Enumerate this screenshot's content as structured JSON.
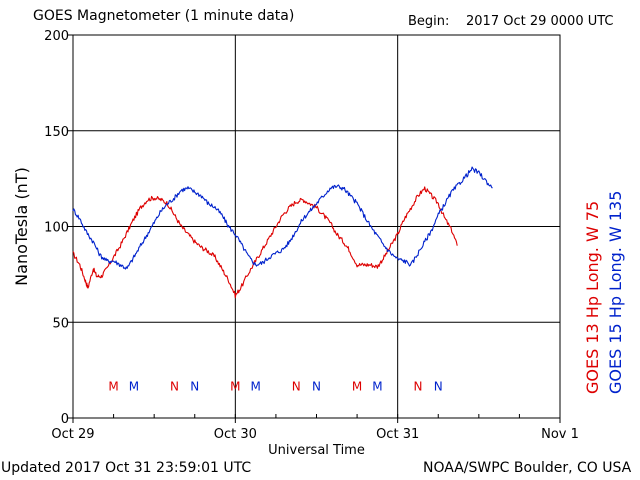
{
  "header": {
    "title": "GOES Magnetometer (1 minute data)",
    "begin_label": "Begin:",
    "begin_value": "2017 Oct 29 0000 UTC"
  },
  "footer": {
    "updated": "Updated 2017 Oct 31 23:59:01 UTC",
    "source": "NOAA/SWPC Boulder, CO USA"
  },
  "colors": {
    "goes13": "#dd0000",
    "goes15": "#0022cc",
    "grid": "#000000"
  },
  "chart_data": {
    "type": "line",
    "title": "GOES Magnetometer (1 minute data)",
    "xlabel": "Universal Time",
    "ylabel": "NanoTesla (nT)",
    "ylim": [
      0,
      200
    ],
    "xlim": [
      0,
      72
    ],
    "x_unit": "hours since 2017 Oct 29 0000 UTC",
    "yticks": [
      0,
      50,
      100,
      150,
      200
    ],
    "xticks": [
      {
        "x": 0,
        "label": "Oct 29"
      },
      {
        "x": 24,
        "label": "Oct 30"
      },
      {
        "x": 48,
        "label": "Oct 31"
      },
      {
        "x": 72,
        "label": "Nov 1"
      }
    ],
    "grid": true,
    "series": [
      {
        "name": "GOES 13 Hp",
        "legend": [
          "GOES 13 Hp",
          "Long. W 75"
        ],
        "color": "#dd0000",
        "points": [
          [
            0,
            86
          ],
          [
            1,
            80
          ],
          [
            1.8,
            72
          ],
          [
            2.2,
            68
          ],
          [
            3,
            78
          ],
          [
            3.5,
            74
          ],
          [
            4.2,
            74
          ],
          [
            5,
            78
          ],
          [
            6,
            84
          ],
          [
            7,
            90
          ],
          [
            8,
            97
          ],
          [
            9,
            104
          ],
          [
            10,
            110
          ],
          [
            11,
            114
          ],
          [
            12,
            115
          ],
          [
            13,
            114
          ],
          [
            14,
            112
          ],
          [
            15,
            106
          ],
          [
            16,
            100
          ],
          [
            17,
            96
          ],
          [
            18,
            92
          ],
          [
            19,
            89
          ],
          [
            20,
            87
          ],
          [
            21,
            84
          ],
          [
            22,
            78
          ],
          [
            23,
            72
          ],
          [
            24,
            64
          ],
          [
            24.8,
            68
          ],
          [
            26,
            76
          ],
          [
            27,
            82
          ],
          [
            28,
            88
          ],
          [
            29,
            94
          ],
          [
            30,
            100
          ],
          [
            31,
            106
          ],
          [
            32,
            110
          ],
          [
            33,
            113
          ],
          [
            34,
            114
          ],
          [
            35,
            112
          ],
          [
            36,
            110
          ],
          [
            37,
            106
          ],
          [
            38,
            102
          ],
          [
            39,
            96
          ],
          [
            40,
            92
          ],
          [
            40.8,
            88
          ],
          [
            42,
            80
          ],
          [
            43,
            80
          ],
          [
            44,
            80
          ],
          [
            45,
            79
          ],
          [
            46,
            84
          ],
          [
            47,
            90
          ],
          [
            48,
            96
          ],
          [
            49,
            104
          ],
          [
            50,
            110
          ],
          [
            51,
            116
          ],
          [
            52,
            120
          ],
          [
            53,
            116
          ],
          [
            54,
            112
          ],
          [
            55,
            104
          ],
          [
            56,
            98
          ],
          [
            56.8,
            90
          ]
        ]
      },
      {
        "name": "GOES 15 Hp",
        "legend": [
          "GOES 15 Hp",
          "Long. W 135"
        ],
        "color": "#0022cc",
        "points": [
          [
            0,
            109
          ],
          [
            1,
            104
          ],
          [
            2,
            97
          ],
          [
            3,
            92
          ],
          [
            4,
            85
          ],
          [
            5,
            82
          ],
          [
            6,
            82
          ],
          [
            7,
            80
          ],
          [
            8,
            78
          ],
          [
            9,
            84
          ],
          [
            10,
            90
          ],
          [
            11,
            96
          ],
          [
            12,
            102
          ],
          [
            13,
            108
          ],
          [
            14,
            112
          ],
          [
            15,
            115
          ],
          [
            16,
            119
          ],
          [
            17,
            120
          ],
          [
            18,
            118
          ],
          [
            19,
            116
          ],
          [
            20,
            112
          ],
          [
            21,
            110
          ],
          [
            22,
            106
          ],
          [
            23,
            100
          ],
          [
            24,
            96
          ],
          [
            25,
            90
          ],
          [
            26,
            84
          ],
          [
            27,
            80
          ],
          [
            28,
            81
          ],
          [
            29,
            84
          ],
          [
            30,
            86
          ],
          [
            31,
            88
          ],
          [
            32,
            92
          ],
          [
            33,
            98
          ],
          [
            34,
            104
          ],
          [
            35,
            108
          ],
          [
            36,
            112
          ],
          [
            37,
            116
          ],
          [
            38,
            120
          ],
          [
            39,
            121
          ],
          [
            40,
            120
          ],
          [
            41,
            116
          ],
          [
            42,
            112
          ],
          [
            43,
            106
          ],
          [
            44,
            100
          ],
          [
            45,
            95
          ],
          [
            46,
            90
          ],
          [
            47,
            86
          ],
          [
            48,
            83
          ],
          [
            49,
            82
          ],
          [
            50,
            80
          ],
          [
            51,
            86
          ],
          [
            52,
            92
          ],
          [
            53,
            98
          ],
          [
            54,
            106
          ],
          [
            55,
            112
          ],
          [
            56,
            118
          ],
          [
            57,
            122
          ],
          [
            58,
            126
          ],
          [
            59,
            130
          ],
          [
            60,
            128
          ],
          [
            61,
            124
          ],
          [
            62,
            120
          ]
        ]
      }
    ],
    "markers": [
      {
        "x": 6,
        "label": "M",
        "color": "#dd0000"
      },
      {
        "x": 9,
        "label": "M",
        "color": "#0022cc"
      },
      {
        "x": 15,
        "label": "N",
        "color": "#dd0000"
      },
      {
        "x": 18,
        "label": "N",
        "color": "#0022cc"
      },
      {
        "x": 24,
        "label": "M",
        "color": "#dd0000"
      },
      {
        "x": 27,
        "label": "M",
        "color": "#0022cc"
      },
      {
        "x": 33,
        "label": "N",
        "color": "#dd0000"
      },
      {
        "x": 36,
        "label": "N",
        "color": "#0022cc"
      },
      {
        "x": 42,
        "label": "M",
        "color": "#dd0000"
      },
      {
        "x": 45,
        "label": "M",
        "color": "#0022cc"
      },
      {
        "x": 51,
        "label": "N",
        "color": "#dd0000"
      },
      {
        "x": 54,
        "label": "N",
        "color": "#0022cc"
      }
    ],
    "marker_level": 17
  }
}
